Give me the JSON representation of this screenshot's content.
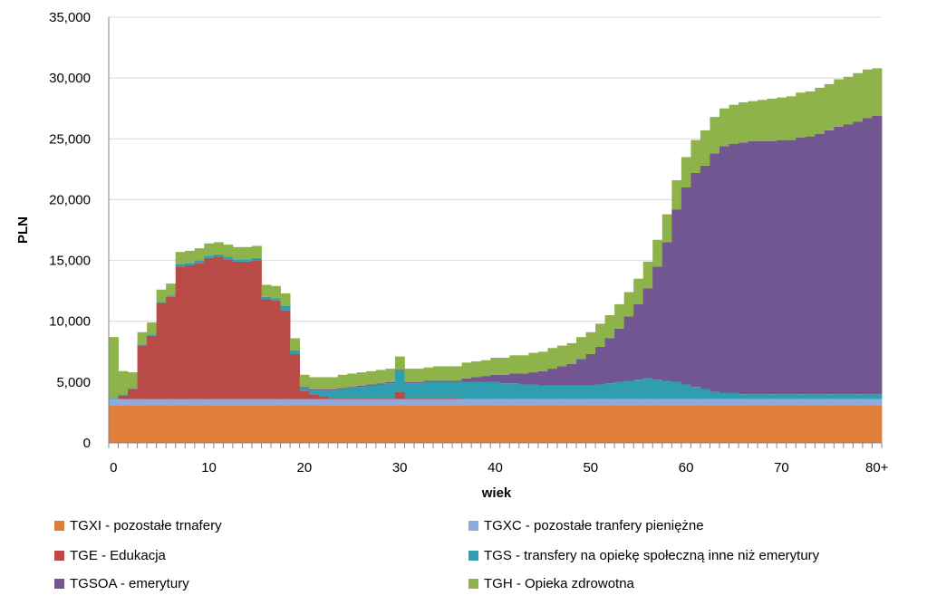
{
  "chart_data": {
    "type": "stacked-bar",
    "xlabel": "wiek",
    "ylabel": "PLN",
    "ylim": [
      0,
      35000
    ],
    "yticks": [
      "0",
      "5,000",
      "10,000",
      "15,000",
      "20,000",
      "25,000",
      "30,000",
      "35,000"
    ],
    "xticks": [
      {
        "pos": 0,
        "label": "0"
      },
      {
        "pos": 10,
        "label": "10"
      },
      {
        "pos": 20,
        "label": "20"
      },
      {
        "pos": 30,
        "label": "30"
      },
      {
        "pos": 40,
        "label": "40"
      },
      {
        "pos": 50,
        "label": "50"
      },
      {
        "pos": 60,
        "label": "60"
      },
      {
        "pos": 70,
        "label": "70"
      },
      {
        "pos": 80,
        "label": "80+"
      }
    ],
    "grid": true,
    "legend_position": "bottom",
    "categories": [
      "0",
      "1",
      "2",
      "3",
      "4",
      "5",
      "6",
      "7",
      "8",
      "9",
      "10",
      "11",
      "12",
      "13",
      "14",
      "15",
      "16",
      "17",
      "18",
      "19",
      "20",
      "21",
      "22",
      "23",
      "24",
      "25",
      "26",
      "27",
      "28",
      "29",
      "30",
      "31",
      "32",
      "33",
      "34",
      "35",
      "36",
      "37",
      "38",
      "39",
      "40",
      "41",
      "42",
      "43",
      "44",
      "45",
      "46",
      "47",
      "48",
      "49",
      "50",
      "51",
      "52",
      "53",
      "54",
      "55",
      "56",
      "57",
      "58",
      "59",
      "60",
      "61",
      "62",
      "63",
      "64",
      "65",
      "66",
      "67",
      "68",
      "69",
      "70",
      "71",
      "72",
      "73",
      "74",
      "75",
      "76",
      "77",
      "78",
      "79",
      "80+"
    ],
    "series": [
      {
        "name": "TGXI - pozostałe trnafery",
        "color": "#e07f3b",
        "values": [
          3100,
          3100,
          3100,
          3100,
          3100,
          3100,
          3100,
          3100,
          3100,
          3100,
          3100,
          3100,
          3100,
          3100,
          3100,
          3100,
          3100,
          3100,
          3100,
          3100,
          3100,
          3100,
          3100,
          3100,
          3100,
          3100,
          3100,
          3100,
          3100,
          3100,
          3100,
          3100,
          3100,
          3100,
          3100,
          3100,
          3100,
          3100,
          3100,
          3100,
          3100,
          3100,
          3100,
          3100,
          3100,
          3100,
          3100,
          3100,
          3100,
          3100,
          3100,
          3100,
          3100,
          3100,
          3100,
          3100,
          3100,
          3100,
          3100,
          3100,
          3100,
          3100,
          3100,
          3100,
          3100,
          3100,
          3100,
          3100,
          3100,
          3100,
          3100,
          3100,
          3100,
          3100,
          3100,
          3100,
          3100,
          3100,
          3100,
          3100,
          3100
        ]
      },
      {
        "name": "TGXC - pozostałe tranfery pieniężne",
        "color": "#8faadc",
        "values": [
          500,
          500,
          500,
          500,
          500,
          500,
          500,
          500,
          500,
          500,
          500,
          500,
          500,
          500,
          500,
          500,
          500,
          500,
          500,
          500,
          500,
          500,
          500,
          500,
          500,
          500,
          500,
          500,
          500,
          500,
          500,
          500,
          500,
          500,
          500,
          500,
          500,
          500,
          500,
          500,
          500,
          500,
          500,
          500,
          500,
          500,
          500,
          500,
          500,
          500,
          500,
          500,
          500,
          500,
          500,
          500,
          500,
          500,
          500,
          500,
          500,
          500,
          500,
          500,
          500,
          500,
          500,
          500,
          500,
          500,
          500,
          500,
          500,
          500,
          500,
          500,
          500,
          500,
          500,
          500,
          500
        ]
      },
      {
        "name": "TGE - Edukacja",
        "color": "#b94a47",
        "values": [
          0,
          300,
          800,
          4400,
          5200,
          7900,
          8400,
          10900,
          11000,
          11200,
          11600,
          11700,
          11500,
          11300,
          11300,
          11400,
          8200,
          8100,
          7300,
          3700,
          700,
          400,
          200,
          100,
          100,
          100,
          100,
          100,
          100,
          100,
          600,
          100,
          100,
          100,
          100,
          100,
          100,
          0,
          0,
          0,
          0,
          0,
          0,
          0,
          0,
          0,
          0,
          0,
          0,
          0,
          0,
          0,
          0,
          0,
          0,
          0,
          0,
          0,
          0,
          0,
          0,
          0,
          0,
          0,
          0,
          0,
          0,
          0,
          0,
          0,
          0,
          0,
          0,
          0,
          0,
          0,
          0,
          0,
          0,
          0,
          0
        ]
      },
      {
        "name": "TGS - transfery na opiekę społeczną inne niż emerytury",
        "color": "#2f9fb0",
        "values": [
          100,
          100,
          100,
          100,
          100,
          100,
          100,
          200,
          200,
          200,
          200,
          200,
          200,
          200,
          200,
          200,
          200,
          200,
          400,
          300,
          200,
          300,
          500,
          600,
          700,
          800,
          900,
          1000,
          1100,
          1200,
          1700,
          1200,
          1200,
          1300,
          1300,
          1300,
          1300,
          1400,
          1400,
          1400,
          1400,
          1300,
          1300,
          1200,
          1200,
          1100,
          1100,
          1100,
          1100,
          1100,
          1100,
          1200,
          1300,
          1400,
          1500,
          1600,
          1700,
          1600,
          1500,
          1400,
          1200,
          1000,
          800,
          600,
          500,
          500,
          400,
          400,
          400,
          400,
          400,
          400,
          400,
          400,
          400,
          400,
          400,
          400,
          400,
          400,
          400
        ]
      },
      {
        "name": "TGSOA - emerytury",
        "color": "#725692",
        "values": [
          0,
          0,
          0,
          0,
          0,
          0,
          0,
          0,
          0,
          0,
          0,
          0,
          0,
          0,
          0,
          0,
          0,
          0,
          0,
          0,
          100,
          100,
          100,
          100,
          100,
          100,
          100,
          100,
          100,
          100,
          100,
          100,
          100,
          100,
          100,
          100,
          100,
          300,
          400,
          500,
          600,
          700,
          800,
          900,
          1000,
          1200,
          1400,
          1600,
          1800,
          2200,
          2600,
          3100,
          3700,
          4400,
          5300,
          6200,
          7400,
          9300,
          11400,
          14200,
          16200,
          17600,
          18400,
          19600,
          20300,
          20500,
          20700,
          20800,
          20800,
          20800,
          20900,
          20900,
          21100,
          21200,
          21400,
          21700,
          22000,
          22200,
          22400,
          22700,
          22900
        ]
      },
      {
        "name": "TGH - Opieka zdrowotna",
        "color": "#8eb34a",
        "values": [
          5000,
          1900,
          1300,
          1000,
          1000,
          1000,
          1000,
          1000,
          1000,
          1000,
          1000,
          1000,
          1000,
          1000,
          1000,
          1000,
          1000,
          1000,
          1000,
          1000,
          1000,
          1000,
          1000,
          1000,
          1100,
          1100,
          1100,
          1100,
          1100,
          1100,
          1100,
          1100,
          1100,
          1100,
          1200,
          1200,
          1200,
          1300,
          1300,
          1300,
          1400,
          1400,
          1500,
          1500,
          1600,
          1600,
          1700,
          1700,
          1700,
          1800,
          1800,
          1900,
          1900,
          2000,
          2000,
          2100,
          2200,
          2200,
          2300,
          2400,
          2500,
          2700,
          2900,
          3000,
          3100,
          3200,
          3300,
          3300,
          3400,
          3500,
          3500,
          3600,
          3700,
          3700,
          3800,
          3800,
          3900,
          3900,
          4000,
          4000,
          3900
        ]
      }
    ]
  }
}
